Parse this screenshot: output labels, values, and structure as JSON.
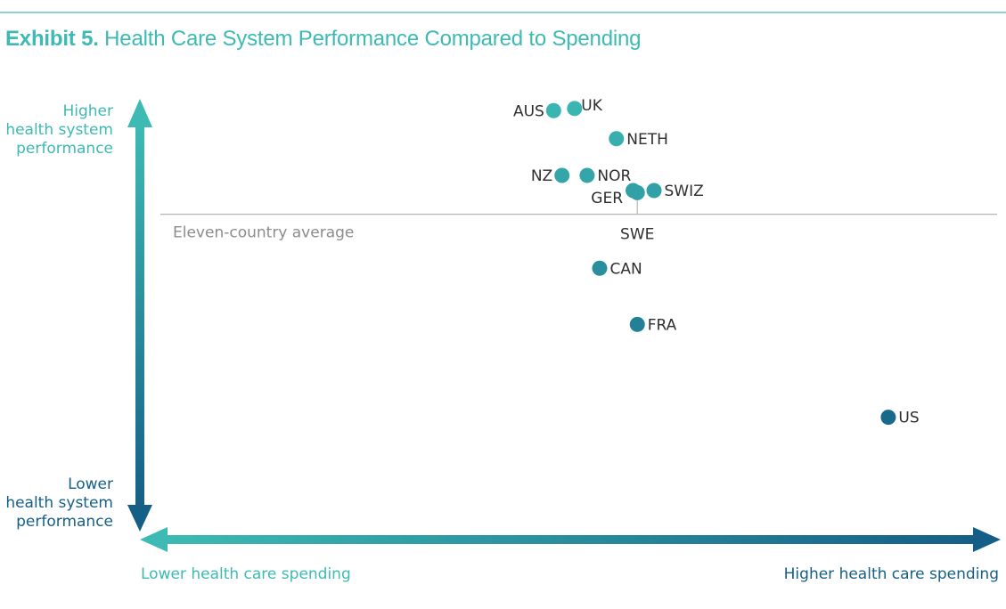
{
  "header": {
    "exhibit": "Exhibit 5.",
    "title": " Health Care System Performance Compared to Spending"
  },
  "colors": {
    "teal_light": "#3dbab4",
    "teal_dark": "#155f86",
    "average_line": "#b5b5b5",
    "rule": "#8fcfcc"
  },
  "chart_data": {
    "type": "scatter",
    "title": "Health Care System Performance Compared to Spending",
    "y_axis": {
      "top_label": [
        "Higher",
        "health system",
        "performance"
      ],
      "bottom_label": [
        "Lower",
        "health system",
        "performance"
      ]
    },
    "x_axis": {
      "left_label": "Lower health care spending",
      "right_label": "Higher health care spending"
    },
    "xlim": [
      0,
      100
    ],
    "ylim": [
      0,
      100
    ],
    "average": {
      "label": "Eleven-country average",
      "y": 71
    },
    "points": [
      {
        "name": "AUS",
        "x": 47.0,
        "y": 95.0,
        "label_side": "left"
      },
      {
        "name": "UK",
        "x": 49.5,
        "y": 95.5,
        "label_side": "right-up"
      },
      {
        "name": "NETH",
        "x": 54.5,
        "y": 88.5,
        "label_side": "right"
      },
      {
        "name": "NZ",
        "x": 48.0,
        "y": 80.0,
        "label_side": "left"
      },
      {
        "name": "NOR",
        "x": 51.0,
        "y": 80.0,
        "label_side": "right"
      },
      {
        "name": "GER",
        "x": 56.5,
        "y": 76.5,
        "label_side": "left-down"
      },
      {
        "name": "SWIZ",
        "x": 59.0,
        "y": 76.5,
        "label_side": "right"
      },
      {
        "name": "SWE",
        "x": 57.0,
        "y": 76.0,
        "label_side": "below-leader"
      },
      {
        "name": "CAN",
        "x": 52.5,
        "y": 58.5,
        "label_side": "right"
      },
      {
        "name": "FRA",
        "x": 57.0,
        "y": 45.5,
        "label_side": "right"
      },
      {
        "name": "US",
        "x": 87.0,
        "y": 24.0,
        "label_side": "right"
      }
    ]
  }
}
